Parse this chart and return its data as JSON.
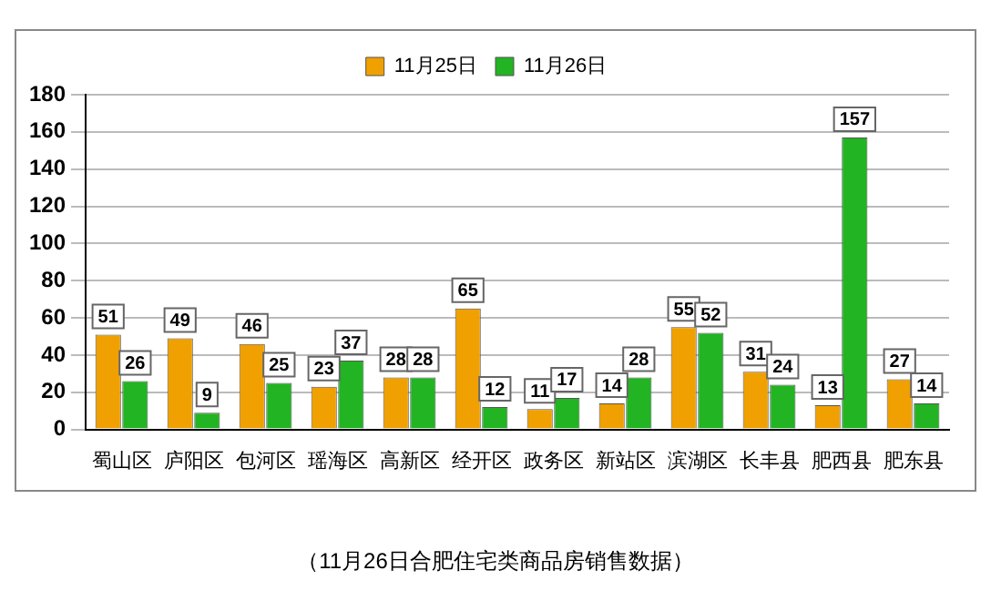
{
  "chart_data": {
    "type": "bar",
    "categories": [
      "蜀山区",
      "庐阳区",
      "包河区",
      "瑶海区",
      "高新区",
      "经开区",
      "政务区",
      "新站区",
      "滨湖区",
      "长丰县",
      "肥西县",
      "肥东县"
    ],
    "series": [
      {
        "name": "11月25日",
        "color": "#f0a000",
        "values": [
          51,
          49,
          46,
          23,
          28,
          65,
          11,
          14,
          55,
          31,
          13,
          27
        ]
      },
      {
        "name": "11月26日",
        "color": "#22b422",
        "values": [
          26,
          9,
          25,
          37,
          28,
          12,
          17,
          28,
          52,
          24,
          157,
          14
        ]
      }
    ],
    "ylim": [
      0,
      180
    ],
    "yticks": [
      0,
      20,
      40,
      60,
      80,
      100,
      120,
      140,
      160,
      180
    ],
    "grid": "y",
    "legend": "top",
    "data_labels": true,
    "annotations": [
      "（11月26日合肥住宅类商品房销售数据）"
    ]
  }
}
